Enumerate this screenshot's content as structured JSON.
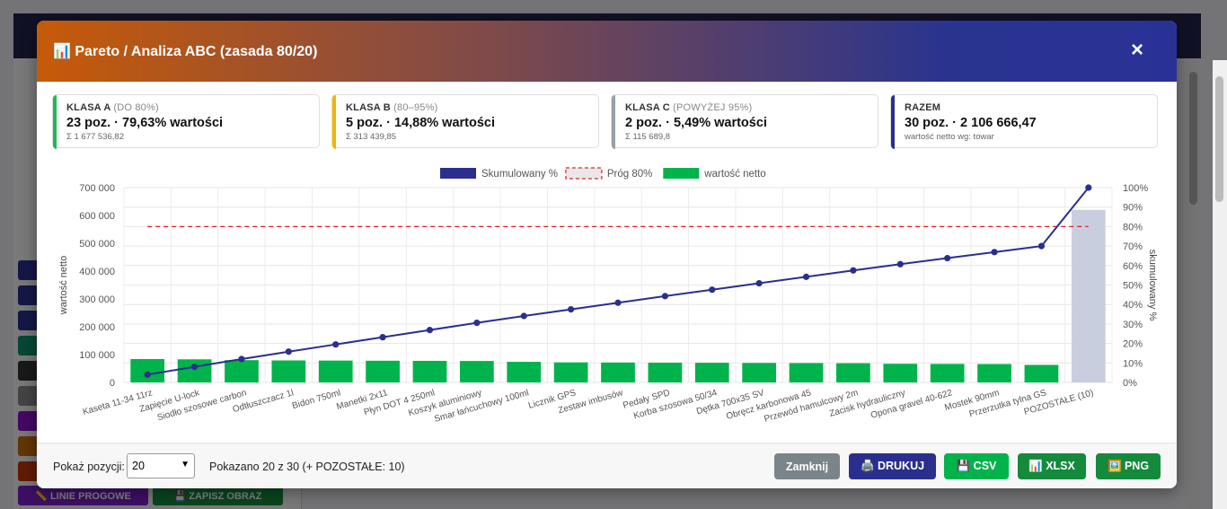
{
  "modal": {
    "title": "📊 Pareto / Analiza ABC (zasada 80/20)",
    "close": "×"
  },
  "cards": [
    {
      "label": "Klasa A",
      "sub": "(do 80%)",
      "value": "23 poz. · 79,63% wartości",
      "note": "Σ 1 677 536,82",
      "color": "#1db954"
    },
    {
      "label": "Klasa B",
      "sub": "(80–95%)",
      "value": "5 poz. · 14,88% wartości",
      "note": "Σ 313 439,85",
      "color": "#f0b400"
    },
    {
      "label": "Klasa C",
      "sub": "(powyżej 95%)",
      "value": "2 poz. · 5,49% wartości",
      "note": "Σ 115 689,8",
      "color": "#9aa0a8"
    },
    {
      "label": "Razem",
      "sub": "",
      "value": "30 poz. · 2 106 666,47",
      "note": "wartość netto wg: towar",
      "color": "#2a2f8e"
    }
  ],
  "chart_data": {
    "type": "bar",
    "legend": [
      "Skumulowany %",
      "Próg 80%",
      "wartość netto"
    ],
    "legend_position": "top",
    "categories": [
      "Kaseta 11-34 11rz",
      "Zapięcie U-lock",
      "Siodło szosowe carbon",
      "Odtłuszczacz 1l",
      "Bidon 750ml",
      "Manetki 2x11",
      "Płyn DOT 4 250ml",
      "Koszyk aluminiowy",
      "Smar łańcuchowy 100ml",
      "Licznik GPS",
      "Zestaw imbusów",
      "Pedały SPD",
      "Korba szosowa 50/34",
      "Dętka 700x35 SV",
      "Obręcz karbonowa 45",
      "Przewód hamulcowy 2m",
      "Zacisk hydrauliczny",
      "Opona gravel 40-622",
      "Mostek 90mm",
      "Przerzutka tylna GS",
      "POZOSTAŁE (10)"
    ],
    "series": [
      {
        "name": "wartość netto",
        "type": "bar",
        "axis": "left",
        "color": "#00b34a",
        "values": [
          84000,
          83000,
          80000,
          79000,
          78500,
          78000,
          77500,
          77000,
          74000,
          72000,
          71500,
          71000,
          70500,
          70000,
          69500,
          69000,
          67000,
          66500,
          66000,
          63000,
          620000
        ],
        "special_colors": {
          "20": "#c9cedf"
        }
      },
      {
        "name": "Skumulowany %",
        "type": "line",
        "axis": "right",
        "color": "#2a2f8e",
        "values": [
          4,
          8,
          12,
          15.8,
          19.5,
          23.2,
          26.9,
          30.6,
          34.1,
          37.5,
          40.9,
          44.3,
          47.6,
          50.9,
          54.2,
          57.5,
          60.7,
          63.8,
          66.9,
          70,
          100
        ]
      },
      {
        "name": "Próg 80%",
        "type": "threshold",
        "axis": "right",
        "color": "#e02020",
        "value": 80
      }
    ],
    "ylabel": "wartość netto",
    "y2label": "skumulowany %",
    "ylim": [
      0,
      700000
    ],
    "yticks": [
      "0",
      "100 000",
      "200 000",
      "300 000",
      "400 000",
      "500 000",
      "600 000",
      "700 000"
    ],
    "y2lim": [
      0,
      100
    ],
    "y2ticks": [
      "0%",
      "10%",
      "20%",
      "30%",
      "40%",
      "50%",
      "60%",
      "70%",
      "80%",
      "90%",
      "100%"
    ],
    "grid": true
  },
  "footer": {
    "show_label": "Pokaż pozycji:",
    "show_value": "20",
    "info": "Pokazano 20 z 30 (+ POZOSTAŁE: 10)",
    "buttons": [
      {
        "label": "Zamknij",
        "color": "#7b8489"
      },
      {
        "label": "🖨️ DRUKUJ",
        "color": "#2a2f8e"
      },
      {
        "label": "💾 CSV",
        "color": "#00b34a"
      },
      {
        "label": "📊 XLSX",
        "color": "#138a3c"
      },
      {
        "label": "🖼️ PNG",
        "color": "#138a3c"
      }
    ]
  },
  "background": {
    "buttons": [
      "📏 LINIE PROGOWE",
      "💾 ZAPISZ OBRAZ"
    ]
  }
}
